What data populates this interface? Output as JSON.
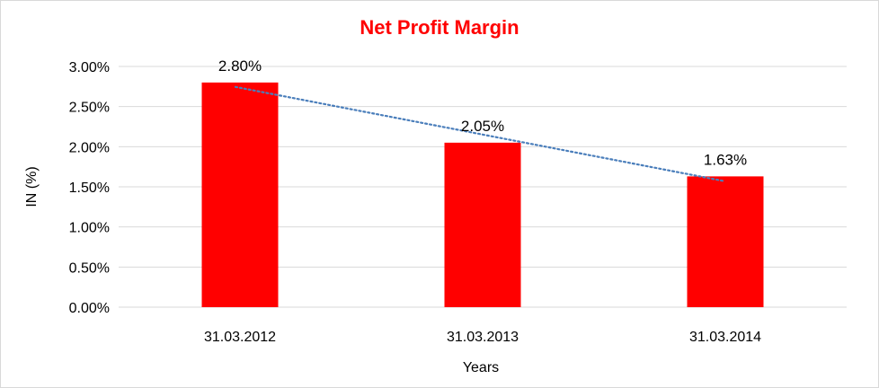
{
  "chart_data": {
    "type": "bar",
    "title": "Net Profit Margin",
    "xlabel": "Years",
    "ylabel": "IN (%)",
    "categories": [
      "31.03.2012",
      "31.03.2013",
      "31.03.2014"
    ],
    "series": [
      {
        "values": [
          2.8,
          2.05,
          1.63
        ],
        "data_labels": [
          "2.80%",
          "2.05%",
          "1.63%"
        ]
      }
    ],
    "trendline": {
      "type": "linear",
      "style": "dotted"
    },
    "ylim": [
      0,
      3.0
    ],
    "yticks": [
      "0.00%",
      "0.50%",
      "1.00%",
      "1.50%",
      "2.00%",
      "2.50%",
      "3.00%"
    ],
    "grid": true,
    "legend": "none",
    "colors": {
      "bar": "#ff0000",
      "title": "#ff0000",
      "trendline": "#4a7ebb",
      "grid": "#d9d9d9"
    }
  }
}
